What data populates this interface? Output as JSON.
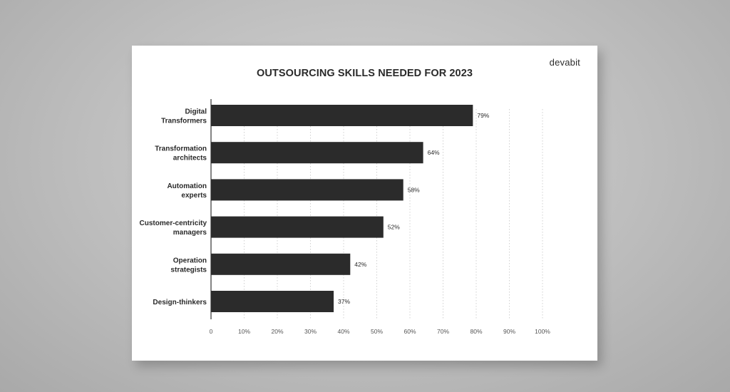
{
  "brand": "devabit",
  "colors": {
    "bar": "#2b2b2b",
    "text": "#2a2a2a",
    "grid": "#d0d0d0",
    "axis": "#333333"
  },
  "chart_data": {
    "type": "bar",
    "orientation": "horizontal",
    "title": "OUTSOURCING SKILLS NEEDED FOR 2023",
    "categories": [
      [
        "Digital",
        "Transformers"
      ],
      [
        "Transformation",
        "architects"
      ],
      [
        "Automation",
        "experts"
      ],
      [
        "Customer-centricity",
        "managers"
      ],
      [
        "Operation",
        "strategists"
      ],
      [
        "Design-thinkers"
      ]
    ],
    "values": [
      79,
      64,
      58,
      52,
      42,
      37
    ],
    "value_labels": [
      "79%",
      "64%",
      "58%",
      "52%",
      "42%",
      "37%"
    ],
    "xlim": [
      0,
      100
    ],
    "xticks": [
      0,
      10,
      20,
      30,
      40,
      50,
      60,
      70,
      80,
      90,
      100
    ],
    "xtick_labels": [
      "0",
      "10%",
      "20%",
      "30%",
      "40%",
      "50%",
      "60%",
      "70%",
      "80%",
      "90%",
      "100%"
    ],
    "grid": true
  }
}
